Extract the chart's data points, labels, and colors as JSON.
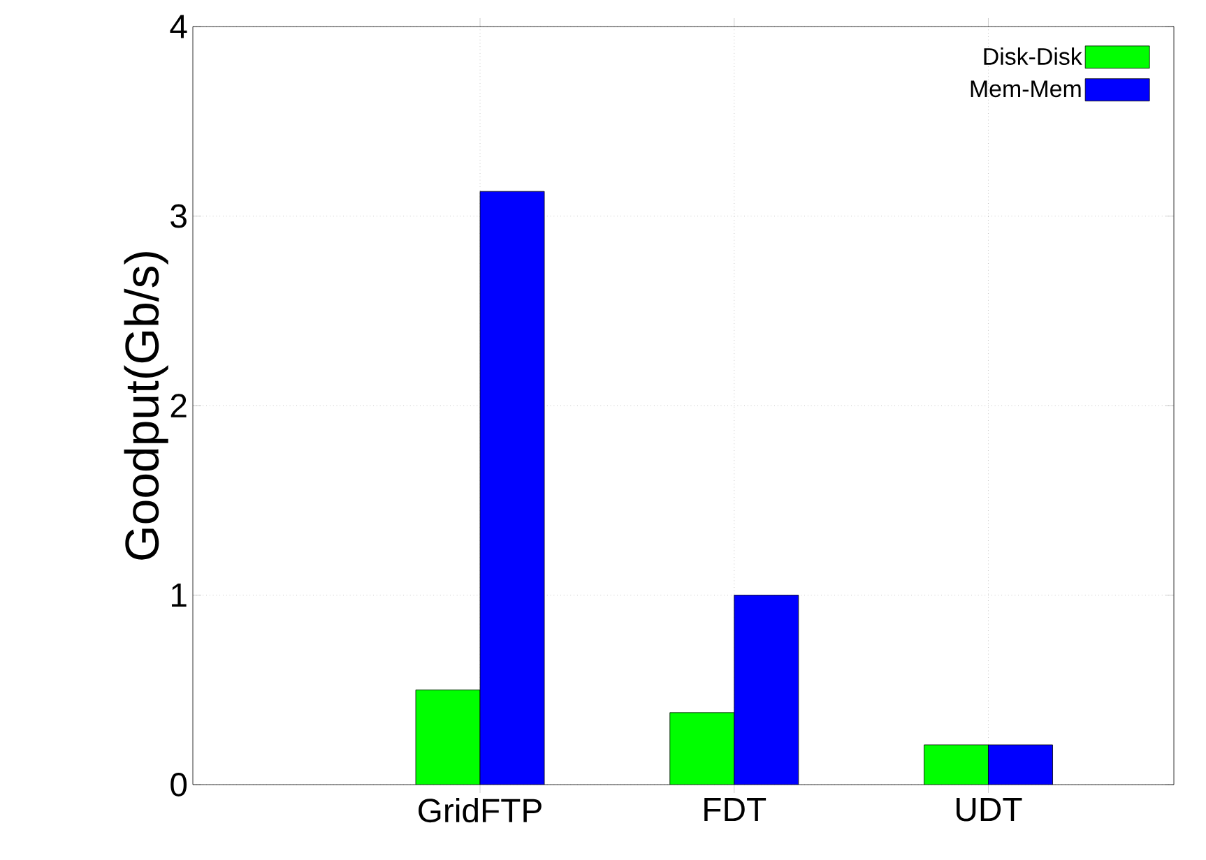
{
  "chart_data": {
    "type": "bar",
    "ylabel": "Goodput(Gb/s)",
    "categories": [
      "GridFTP",
      "FDT",
      "UDT"
    ],
    "series": [
      {
        "name": "Disk-Disk",
        "color": "#00ff00",
        "values": [
          0.5,
          0.38,
          0.21
        ]
      },
      {
        "name": "Mem-Mem",
        "color": "#0000ff",
        "values": [
          3.13,
          1.0,
          0.21
        ]
      }
    ],
    "ylim": [
      0,
      4
    ],
    "yticks": [
      0,
      1,
      2,
      3,
      4
    ],
    "grid": true,
    "legend": "top right"
  }
}
